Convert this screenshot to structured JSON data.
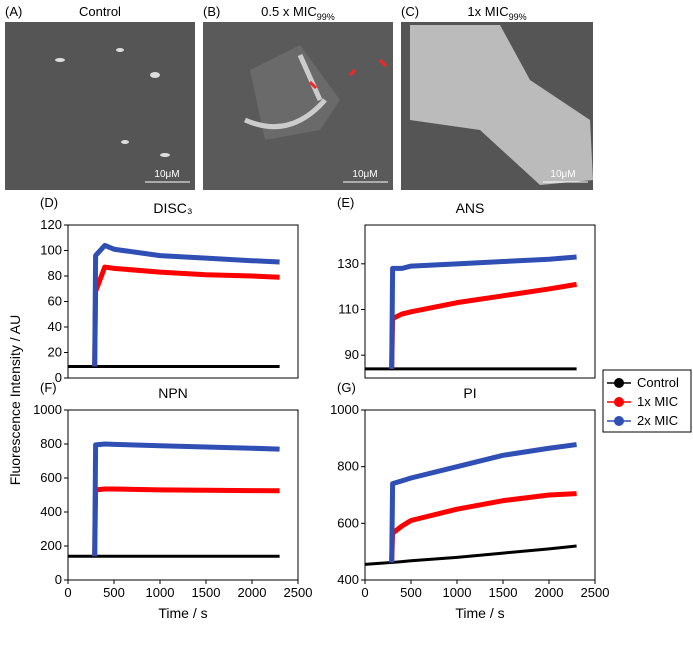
{
  "micrographs": [
    {
      "panel": "(A)",
      "label": "Control",
      "scale_bar": "10μM"
    },
    {
      "panel": "(B)",
      "label": "0.5 x MIC",
      "label_sub": "99%",
      "scale_bar": "10μM"
    },
    {
      "panel": "(C)",
      "label": "1x MIC",
      "label_sub": "99%",
      "scale_bar": "10μM"
    }
  ],
  "y_label": "Fluorescence Intensity / AU",
  "chart_data": [
    {
      "type": "line",
      "panel": "(D)",
      "title": "DISC₃",
      "x": [
        0,
        290,
        300,
        400,
        500,
        1000,
        1500,
        2000,
        2300
      ],
      "xlim": [
        0,
        2500
      ],
      "ylim": [
        0,
        120
      ],
      "yticks": [
        0,
        20,
        40,
        60,
        80,
        100,
        120
      ],
      "series": [
        {
          "name": "Control",
          "color": "#000000",
          "values": [
            9,
            9,
            9,
            9,
            9,
            9,
            9,
            9,
            9
          ]
        },
        {
          "name": "1x MIC",
          "color": "#ff0000",
          "values": [
            null,
            9,
            68,
            87,
            86,
            83,
            81,
            80,
            79
          ]
        },
        {
          "name": "2x MIC",
          "color": "#2f4fb5",
          "values": [
            null,
            9,
            96,
            104,
            101,
            96,
            94,
            92,
            91
          ]
        }
      ]
    },
    {
      "type": "line",
      "panel": "(E)",
      "title": "ANS",
      "x": [
        0,
        290,
        300,
        400,
        500,
        1000,
        1500,
        2000,
        2300
      ],
      "xlim": [
        0,
        2500
      ],
      "ylim": [
        80,
        147
      ],
      "yticks": [
        90,
        110,
        130
      ],
      "series": [
        {
          "name": "Control",
          "color": "#000000",
          "values": [
            84,
            84,
            84,
            84,
            84,
            84,
            84,
            84,
            84
          ]
        },
        {
          "name": "1x MIC",
          "color": "#ff0000",
          "values": [
            null,
            84,
            106,
            108,
            109,
            113,
            116,
            119,
            121
          ]
        },
        {
          "name": "2x MIC",
          "color": "#2f4fb5",
          "values": [
            null,
            84,
            128,
            128,
            129,
            130,
            131,
            132,
            133
          ]
        }
      ]
    },
    {
      "type": "line",
      "panel": "(F)",
      "title": "NPN",
      "x_label": "Time / s",
      "x": [
        0,
        290,
        300,
        400,
        500,
        1000,
        1500,
        2000,
        2300
      ],
      "xlim": [
        0,
        2500
      ],
      "xticks": [
        0,
        500,
        1000,
        1500,
        2000,
        2500
      ],
      "ylim": [
        0,
        1000
      ],
      "yticks": [
        0,
        200,
        400,
        600,
        800,
        1000
      ],
      "series": [
        {
          "name": "Control",
          "color": "#000000",
          "values": [
            140,
            140,
            140,
            140,
            140,
            140,
            140,
            140,
            140
          ]
        },
        {
          "name": "1x MIC",
          "color": "#ff0000",
          "values": [
            null,
            140,
            530,
            535,
            535,
            530,
            528,
            526,
            525
          ]
        },
        {
          "name": "2x MIC",
          "color": "#2f4fb5",
          "values": [
            null,
            140,
            795,
            800,
            798,
            790,
            782,
            775,
            770
          ]
        }
      ]
    },
    {
      "type": "line",
      "panel": "(G)",
      "title": "PI",
      "x_label": "Time / s",
      "x": [
        0,
        290,
        300,
        400,
        500,
        1000,
        1500,
        2000,
        2300
      ],
      "xlim": [
        0,
        2500
      ],
      "xticks": [
        0,
        500,
        1000,
        1500,
        2000,
        2500
      ],
      "ylim": [
        400,
        1000
      ],
      "yticks": [
        400,
        600,
        800,
        1000
      ],
      "series": [
        {
          "name": "Control",
          "color": "#000000",
          "values": [
            455,
            462,
            462,
            465,
            468,
            480,
            495,
            510,
            520
          ]
        },
        {
          "name": "1x MIC",
          "color": "#ff0000",
          "values": [
            null,
            462,
            565,
            590,
            610,
            650,
            680,
            700,
            705
          ]
        },
        {
          "name": "2x MIC",
          "color": "#2f4fb5",
          "values": [
            null,
            462,
            740,
            750,
            760,
            800,
            840,
            865,
            878
          ]
        }
      ]
    }
  ]
}
